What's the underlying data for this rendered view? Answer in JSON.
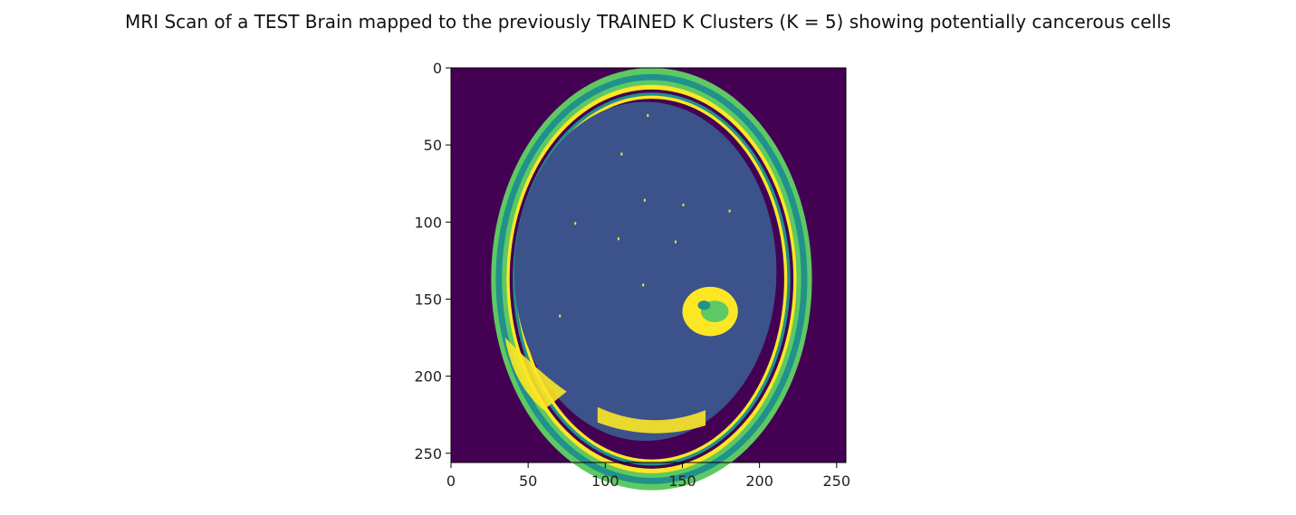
{
  "figure": {
    "title": "MRI Scan of a TEST Brain mapped to the previously TRAINED K Clusters (K = 5) showing potentially cancerous cells"
  },
  "chart_data": {
    "type": "heatmap",
    "title": "MRI Scan of a TEST Brain mapped to the previously TRAINED K Clusters (K = 5) showing potentially cancerous cells",
    "xlabel": "",
    "ylabel": "",
    "xlim": [
      0,
      256
    ],
    "ylim": [
      256,
      0
    ],
    "x_ticks": [
      0,
      50,
      100,
      150,
      200,
      250
    ],
    "y_ticks": [
      0,
      50,
      100,
      150,
      200,
      250
    ],
    "x_tick_labels": [
      "0",
      "50",
      "100",
      "150",
      "200",
      "250"
    ],
    "y_tick_labels": [
      "0",
      "50",
      "100",
      "150",
      "200",
      "250"
    ],
    "colormap": "viridis",
    "grid": false,
    "clusters": 5,
    "cluster_colors": [
      "#440154",
      "#3b528b",
      "#21918c",
      "#5ec962",
      "#fde725"
    ],
    "regions": {
      "background_cluster": 0,
      "brain_tissue_cluster": 1,
      "skull_layers_clusters": [
        2,
        3,
        4
      ],
      "suspicious_mass": {
        "cluster": 4,
        "center": [
          168,
          158
        ],
        "approx_radius": [
          18,
          16
        ]
      }
    }
  }
}
